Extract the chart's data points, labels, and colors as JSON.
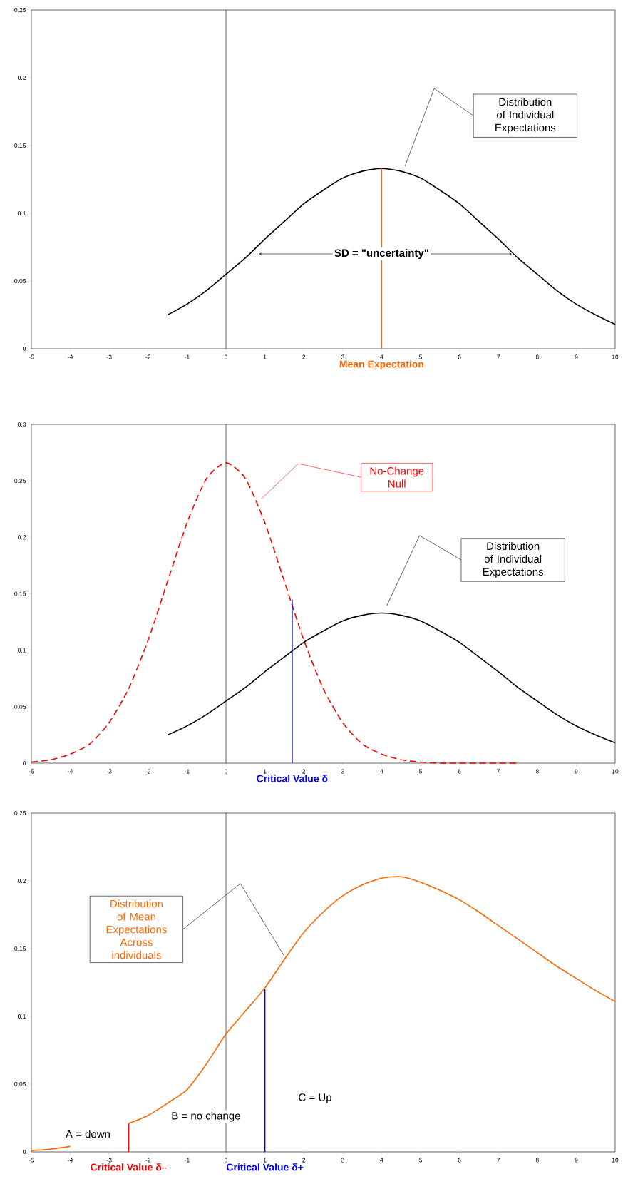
{
  "chart_data": [
    {
      "type": "line",
      "xlim": [
        -5,
        10
      ],
      "ylim": [
        0,
        0.25
      ],
      "xticks": [
        -5,
        -4,
        -3,
        -2,
        -1,
        0,
        1,
        2,
        3,
        4,
        5,
        6,
        7,
        8,
        9,
        10
      ],
      "yticks": [
        0,
        0.05,
        0.1,
        0.15,
        0.2,
        0.25
      ],
      "ref_lines": [
        {
          "axis": "x",
          "value": 0,
          "color": "#000000"
        }
      ],
      "series": [
        {
          "color": "#000000",
          "x": [
            -1.5,
            -1,
            -0.5,
            0,
            0.5,
            1,
            1.5,
            2,
            2.5,
            3,
            3.5,
            4,
            4.5,
            5,
            5.5,
            6,
            6.5,
            7,
            7.5,
            8,
            8.5,
            9,
            9.5,
            10
          ],
          "values": [
            0.025,
            0.033,
            0.043,
            0.055,
            0.067,
            0.081,
            0.094,
            0.107,
            0.117,
            0.126,
            0.131,
            0.133,
            0.131,
            0.126,
            0.117,
            0.107,
            0.094,
            0.081,
            0.067,
            0.055,
            0.043,
            0.033,
            0.025,
            0.018
          ]
        },
        {
          "color": "#ff6600",
          "x": [
            4,
            4
          ],
          "values": [
            0,
            0.133
          ]
        }
      ],
      "annotations": [
        "Distribution of Individual Expectations",
        {
          "text": "SD = \"uncertainty\"",
          "x": 4,
          "y": 0.07
        },
        {
          "text": "Mean Expectation",
          "x": 4,
          "y": 0
        }
      ]
    },
    {
      "type": "line",
      "xlim": [
        -5,
        10
      ],
      "ylim": [
        0,
        0.3
      ],
      "xticks": [
        -5,
        -4,
        -3,
        -2,
        -1,
        0,
        1,
        2,
        3,
        4,
        5,
        6,
        7,
        8,
        9,
        10
      ],
      "yticks": [
        0,
        0.05,
        0.1,
        0.15,
        0.2,
        0.25,
        0.3
      ],
      "ref_lines": [
        {
          "axis": "x",
          "value": 0,
          "color": "#000000"
        }
      ],
      "series": [
        {
          "color": "#ff0000",
          "line_style": "dashed",
          "x": [
            -5,
            -4.5,
            -4,
            -3.5,
            -3,
            -2.5,
            -2,
            -1.5,
            -1,
            -0.5,
            0,
            0.5,
            1,
            1.5,
            2,
            2.5,
            3,
            3.5,
            4,
            4.5,
            5,
            5.5,
            6,
            6.5,
            7,
            7.5
          ],
          "values": [
            0.001,
            0.003,
            0.008,
            0.017,
            0.036,
            0.066,
            0.109,
            0.161,
            0.213,
            0.252,
            0.266,
            0.252,
            0.213,
            0.161,
            0.109,
            0.066,
            0.036,
            0.017,
            0.008,
            0.003,
            0.001,
            0,
            0,
            0,
            0,
            0
          ]
        },
        {
          "color": "#000000",
          "x": [
            -1.5,
            -1,
            -0.5,
            0,
            0.5,
            1,
            1.5,
            2,
            2.5,
            3,
            3.5,
            4,
            4.5,
            5,
            5.5,
            6,
            6.5,
            7,
            7.5,
            8,
            8.5,
            9,
            9.5,
            10
          ],
          "values": [
            0.025,
            0.033,
            0.043,
            0.055,
            0.067,
            0.081,
            0.094,
            0.107,
            0.117,
            0.126,
            0.131,
            0.133,
            0.131,
            0.126,
            0.117,
            0.107,
            0.094,
            0.081,
            0.067,
            0.055,
            0.043,
            0.033,
            0.025,
            0.018
          ]
        },
        {
          "color": "#0000ff",
          "x": [
            1.7,
            1.7
          ],
          "values": [
            0,
            0.145
          ]
        }
      ],
      "annotations": [
        "No-Change Null",
        "Distribution of Individual Expectations",
        {
          "text": "Critical Value δ",
          "x": 1.7,
          "y": 0
        }
      ]
    },
    {
      "type": "line",
      "xlim": [
        -5,
        10
      ],
      "ylim": [
        0,
        0.25
      ],
      "xticks": [
        -5,
        -4,
        -3,
        -2,
        -1,
        0,
        1,
        2,
        3,
        4,
        5,
        6,
        7,
        8,
        9,
        10
      ],
      "yticks": [
        0,
        0.05,
        0.1,
        0.15,
        0.2,
        0.25
      ],
      "ref_lines": [
        {
          "axis": "x",
          "value": 0,
          "color": "#000000"
        }
      ],
      "series": [
        {
          "color": "#ff6600",
          "x": [
            -5,
            -4.5,
            -4,
            -3.25,
            -2.5,
            -2,
            -1.5,
            -1,
            -0.5,
            0,
            0.5,
            1,
            1.5,
            2,
            2.5,
            3,
            3.5,
            4,
            4.5,
            5,
            5.5,
            6,
            6.5,
            7,
            7.5,
            8,
            8.5,
            9,
            9.5,
            10
          ],
          "values": [
            0.001,
            0.002,
            0.004,
            null,
            0.021,
            0.027,
            0.036,
            0.046,
            0.065,
            0.087,
            0.104,
            0.121,
            0.142,
            0.162,
            0.177,
            0.189,
            0.197,
            0.202,
            0.203,
            0.199,
            0.193,
            0.186,
            0.177,
            0.167,
            0.157,
            0.147,
            0.137,
            0.128,
            0.119,
            0.111
          ]
        },
        {
          "color": "#ff0000",
          "x": [
            -2.5,
            -2.5
          ],
          "values": [
            0,
            0.021
          ]
        },
        {
          "color": "#0000ff",
          "x": [
            1,
            1
          ],
          "values": [
            0,
            0.12
          ]
        }
      ],
      "annotations": [
        "Distribution of Mean Expectations Across individuals",
        "A = down",
        "B = no change",
        "C = Up",
        {
          "text": "Critical Value δ–",
          "x": -2.5,
          "y": 0
        },
        {
          "text": "Critical Value δ+",
          "x": 1,
          "y": 0
        }
      ]
    }
  ]
}
